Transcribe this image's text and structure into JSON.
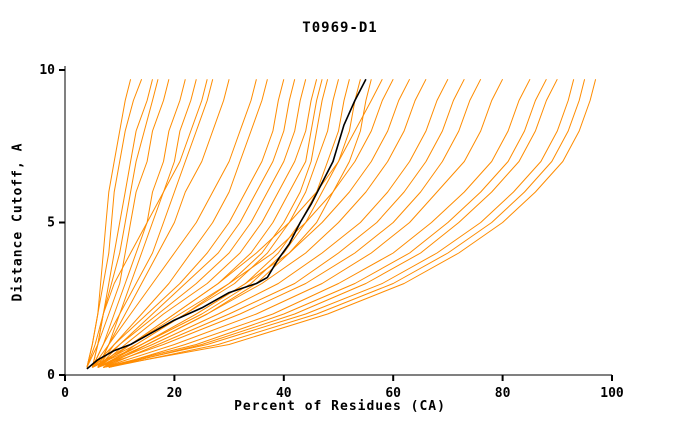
{
  "chart_data": {
    "type": "line",
    "title": "T0969-D1",
    "xlabel": "Percent of Residues (CA)",
    "ylabel": "Distance Cutoff, A",
    "xlim": [
      0,
      100
    ],
    "ylim": [
      0,
      10
    ],
    "x_ticks": [
      0,
      20,
      40,
      60,
      80,
      100
    ],
    "y_ticks": [
      0,
      5,
      10
    ],
    "grid": false,
    "legend": "none",
    "colors": {
      "predictions": "#ff8c00",
      "highlight": "#000000",
      "axes": "#000000",
      "background": "#ffffff"
    },
    "cutoffs": [
      0.25,
      1,
      2,
      3,
      4,
      5,
      6,
      7,
      8,
      9,
      9.7
    ],
    "prediction_curves": [
      [
        4,
        5,
        6,
        6.5,
        7,
        7.5,
        8,
        9,
        10,
        11,
        12
      ],
      [
        4,
        5,
        6,
        7,
        8,
        8.5,
        9,
        10,
        11,
        12.5,
        14
      ],
      [
        5,
        6,
        7,
        8,
        9,
        10,
        11,
        12,
        13,
        15,
        16
      ],
      [
        4,
        5.5,
        7,
        8.5,
        10,
        11,
        12,
        13,
        14.5,
        16,
        17
      ],
      [
        5,
        6,
        8,
        10,
        11,
        12,
        13,
        15,
        16,
        18,
        19
      ],
      [
        5,
        7,
        9,
        11,
        13,
        15,
        16,
        18,
        19,
        21,
        22
      ],
      [
        6,
        8,
        10,
        12,
        14,
        16,
        18,
        20,
        21,
        23,
        24
      ],
      [
        5,
        7,
        10,
        13,
        16,
        18,
        20,
        22,
        24,
        26,
        27
      ],
      [
        6,
        8,
        11,
        14,
        17,
        20,
        22,
        25,
        27,
        29,
        30
      ],
      [
        4,
        6,
        7,
        9,
        12,
        15,
        18,
        21,
        23,
        25,
        26
      ],
      [
        5,
        8,
        12,
        16,
        20,
        24,
        27,
        30,
        32,
        34,
        35
      ],
      [
        6,
        9,
        14,
        19,
        23,
        27,
        30,
        32,
        34,
        36,
        37
      ],
      [
        5,
        9,
        15,
        21,
        26,
        30,
        33,
        36,
        38,
        39,
        40
      ],
      [
        6,
        10,
        16,
        22,
        28,
        32,
        35,
        38,
        40,
        41,
        42
      ],
      [
        5,
        10,
        17,
        24,
        30,
        34,
        37,
        40,
        42,
        43,
        44
      ],
      [
        6,
        11,
        18,
        26,
        32,
        36,
        39,
        42,
        44,
        45,
        46
      ],
      [
        5,
        12,
        20,
        28,
        34,
        38,
        41,
        44,
        45,
        46,
        47
      ],
      [
        6,
        12,
        21,
        30,
        36,
        40,
        43,
        45,
        46,
        47,
        48
      ],
      [
        5,
        13,
        22,
        31,
        37,
        41,
        44,
        46,
        48,
        49,
        50
      ],
      [
        6,
        14,
        24,
        33,
        39,
        43,
        46,
        48,
        50,
        51,
        52
      ],
      [
        5,
        14,
        25,
        34,
        40,
        44,
        47,
        50,
        52,
        53,
        54
      ],
      [
        6,
        15,
        26,
        35,
        41,
        46,
        49,
        52,
        54,
        55,
        56
      ],
      [
        6,
        12,
        20,
        28,
        35,
        41,
        46,
        50,
        53,
        56,
        58
      ],
      [
        7,
        13,
        22,
        30,
        38,
        44,
        49,
        53,
        56,
        58,
        60
      ],
      [
        6,
        14,
        24,
        33,
        41,
        47,
        52,
        56,
        59,
        61,
        63
      ],
      [
        7,
        15,
        26,
        36,
        44,
        50,
        55,
        59,
        62,
        64,
        66
      ],
      [
        6,
        16,
        28,
        39,
        47,
        54,
        59,
        63,
        66,
        68,
        70
      ],
      [
        7,
        17,
        30,
        42,
        50,
        57,
        62,
        66,
        69,
        71,
        73
      ],
      [
        6,
        18,
        32,
        44,
        53,
        60,
        65,
        69,
        72,
        74,
        76
      ],
      [
        7,
        20,
        35,
        47,
        56,
        63,
        68,
        73,
        76,
        78,
        80
      ],
      [
        8,
        22,
        38,
        50,
        60,
        67,
        73,
        78,
        81,
        83,
        85
      ],
      [
        7,
        24,
        40,
        53,
        63,
        70,
        76,
        81,
        84,
        86,
        88
      ],
      [
        8,
        25,
        42,
        55,
        65,
        72,
        78,
        83,
        86,
        88,
        90
      ],
      [
        7,
        26,
        44,
        58,
        68,
        76,
        82,
        87,
        90,
        92,
        93
      ],
      [
        8,
        28,
        46,
        60,
        70,
        78,
        84,
        89,
        92,
        94,
        95
      ],
      [
        7,
        30,
        48,
        62,
        72,
        80,
        86,
        91,
        94,
        96,
        97
      ]
    ],
    "highlight_curve": [
      [
        4,
        0.2
      ],
      [
        6,
        0.5
      ],
      [
        9,
        0.8
      ],
      [
        12,
        1.0
      ],
      [
        16,
        1.4
      ],
      [
        20,
        1.8
      ],
      [
        25,
        2.2
      ],
      [
        30,
        2.7
      ],
      [
        35,
        3.0
      ],
      [
        37,
        3.2
      ],
      [
        39,
        3.8
      ],
      [
        41,
        4.3
      ],
      [
        43,
        5.0
      ],
      [
        45,
        5.6
      ],
      [
        47,
        6.3
      ],
      [
        49,
        7.0
      ],
      [
        50,
        7.6
      ],
      [
        51,
        8.2
      ],
      [
        53,
        9.0
      ],
      [
        55,
        9.7
      ]
    ]
  }
}
